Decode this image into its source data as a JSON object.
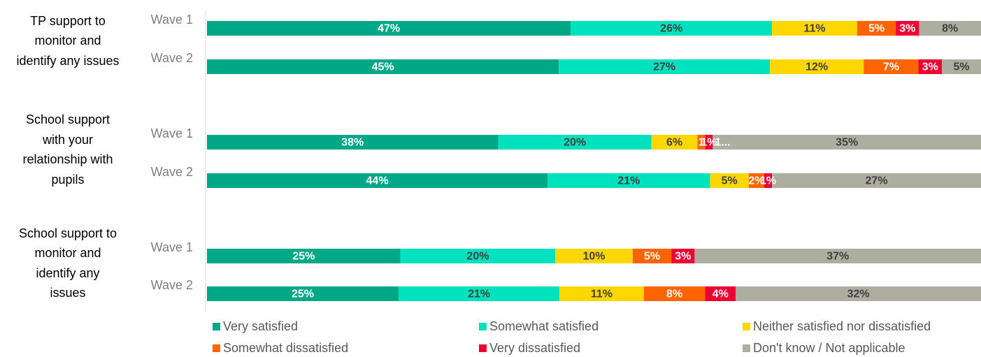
{
  "chart_data": {
    "type": "bar",
    "orientation": "horizontal",
    "stacked": true,
    "xlim": [
      0,
      100
    ],
    "legend_position": "bottom",
    "groups": [
      {
        "label_lines": [
          "TP support to",
          "monitor and",
          "identify any issues"
        ],
        "bars": [
          {
            "label": "Wave 1",
            "values": [
              47,
              26,
              11,
              5,
              3,
              8
            ],
            "labels": [
              "47%",
              "26%",
              "11%",
              "5%",
              "3%",
              "8%"
            ]
          },
          {
            "label": "Wave 2",
            "values": [
              45,
              27,
              12,
              7,
              3,
              5
            ],
            "labels": [
              "45%",
              "27%",
              "12%",
              "7%",
              "3%",
              "5%"
            ]
          }
        ]
      },
      {
        "label_lines": [
          "School support",
          "with your",
          "relationship with",
          "pupils"
        ],
        "bars": [
          {
            "label": "Wave 1",
            "values": [
              38,
              20,
              6,
              1,
              1,
              35
            ],
            "labels": [
              "38%",
              "20%",
              "6%",
              "1",
              "1%",
              "35%"
            ],
            "extra_label": "1..."
          },
          {
            "label": "Wave 2",
            "values": [
              44,
              21,
              5,
              2,
              1,
              27
            ],
            "labels": [
              "44%",
              "21%",
              "5%",
              "2%",
              "1%",
              "27%"
            ]
          }
        ]
      },
      {
        "label_lines": [
          "School support to",
          "monitor and",
          "identify any",
          "issues"
        ],
        "bars": [
          {
            "label": "Wave 1",
            "values": [
              25,
              20,
              10,
              5,
              3,
              37
            ],
            "labels": [
              "25%",
              "20%",
              "10%",
              "5%",
              "3%",
              "37%"
            ]
          },
          {
            "label": "Wave 2",
            "values": [
              25,
              21,
              11,
              8,
              4,
              32
            ],
            "labels": [
              "25%",
              "21%",
              "11%",
              "8%",
              "4%",
              "32%"
            ]
          }
        ]
      }
    ],
    "series": [
      {
        "name": "Very satisfied",
        "color": "#00A887",
        "label_color": "#ffffff"
      },
      {
        "name": "Somewhat satisfied",
        "color": "#00E2BE",
        "label_color": "#404040"
      },
      {
        "name": "Neither satisfied nor dissatisfied",
        "color": "#FFD700",
        "label_color": "#404040"
      },
      {
        "name": "Somewhat dissatisfied",
        "color": "#FF6400",
        "label_color": "#ffffff"
      },
      {
        "name": "Very dissatisfied",
        "color": "#EE0033",
        "label_color": "#ffffff"
      },
      {
        "name": "Don't know / Not applicable",
        "color": "#ADADA0",
        "label_color": "#404040"
      }
    ]
  }
}
